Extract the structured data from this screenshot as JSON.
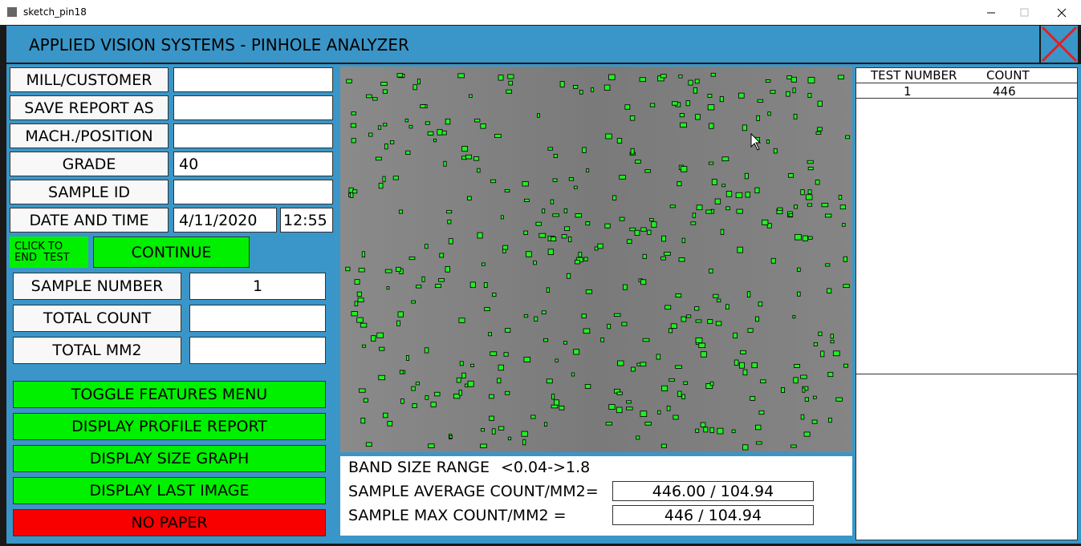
{
  "window": {
    "title": "sketch_pin18"
  },
  "header": {
    "title": "APPLIED VISION SYSTEMS - PINHOLE ANALYZER"
  },
  "form": {
    "mill_customer": {
      "label": "MILL/CUSTOMER"
    },
    "save_report": {
      "label": "SAVE REPORT AS"
    },
    "machine_position": {
      "label": "MACH./POSITION"
    },
    "grade": {
      "label": "GRADE",
      "value": "40"
    },
    "sample_id": {
      "label": "SAMPLE ID"
    },
    "date_time": {
      "label": "DATE AND TIME",
      "date": "4/11/2020",
      "time": "12:55"
    }
  },
  "controls": {
    "end_test": {
      "line1": "CLICK TO",
      "line2": "END  TEST"
    },
    "continue": "CONTINUE"
  },
  "sample": {
    "sample_number": {
      "label": "SAMPLE NUMBER",
      "value": "1"
    },
    "total_count": {
      "label": "TOTAL COUNT"
    },
    "total_mm2": {
      "label": "TOTAL MM2"
    }
  },
  "buttons": [
    "TOGGLE FEATURES MENU",
    "DISPLAY PROFILE REPORT",
    "DISPLAY SIZE GRAPH",
    "DISPLAY LAST IMAGE",
    "NO PAPER"
  ],
  "stats": {
    "band_label": "BAND SIZE RANGE",
    "band_value": "<0.04->1.8",
    "avg_label": "SAMPLE AVERAGE COUNT/MM2=",
    "avg_value": "446.00 / 104.94",
    "max_label": "SAMPLE MAX COUNT/MM2 =",
    "max_value": "446 / 104.94"
  },
  "table": {
    "headers": [
      "TEST NUMBER",
      "COUNT"
    ],
    "rows": [
      [
        "1",
        "446"
      ]
    ]
  }
}
